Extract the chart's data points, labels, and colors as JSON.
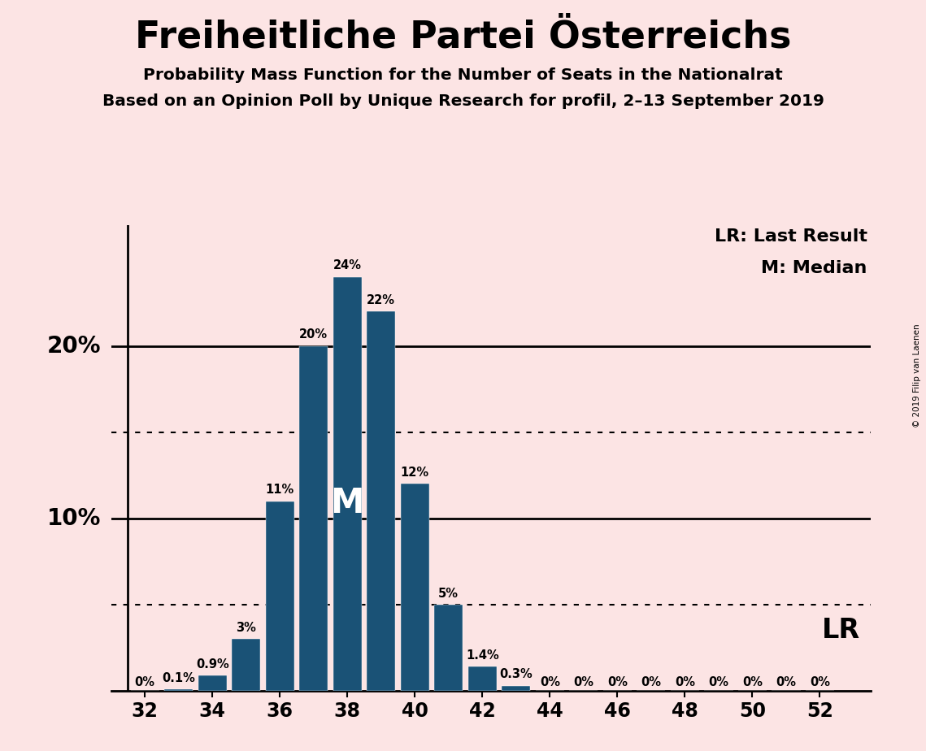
{
  "title": "Freiheitliche Partei Österreichs",
  "subtitle1": "Probability Mass Function for the Number of Seats in the Nationalrat",
  "subtitle2": "Based on an Opinion Poll by Unique Research for profil, 2–13 September 2019",
  "copyright": "© 2019 Filip van Laenen",
  "seats": [
    32,
    33,
    34,
    35,
    36,
    37,
    38,
    39,
    40,
    41,
    42,
    43,
    44,
    45,
    46,
    47,
    48,
    49,
    50,
    51,
    52
  ],
  "probabilities": [
    0.0,
    0.1,
    0.9,
    3.0,
    11.0,
    20.0,
    24.0,
    22.0,
    12.0,
    5.0,
    1.4,
    0.3,
    0.0,
    0.0,
    0.0,
    0.0,
    0.0,
    0.0,
    0.0,
    0.0,
    0.0
  ],
  "bar_labels": [
    "0%",
    "0.1%",
    "0.9%",
    "3%",
    "11%",
    "20%",
    "24%",
    "22%",
    "12%",
    "5%",
    "1.4%",
    "0.3%",
    "0%",
    "0%",
    "0%",
    "0%",
    "0%",
    "0%",
    "0%",
    "0%",
    "0%"
  ],
  "bar_color": "#1a5276",
  "background_color": "#fce4e4",
  "median_seat": 38,
  "lr_seat": 51,
  "yticks_solid": [
    10,
    20
  ],
  "yticks_dotted": [
    5,
    15
  ],
  "ylim": [
    0,
    27
  ],
  "xlim": [
    31.0,
    53.5
  ],
  "xlabel_seats": [
    32,
    34,
    36,
    38,
    40,
    42,
    44,
    46,
    48,
    50,
    52
  ],
  "legend_lr": "LR: Last Result",
  "legend_m": "M: Median",
  "bar_width": 0.85
}
